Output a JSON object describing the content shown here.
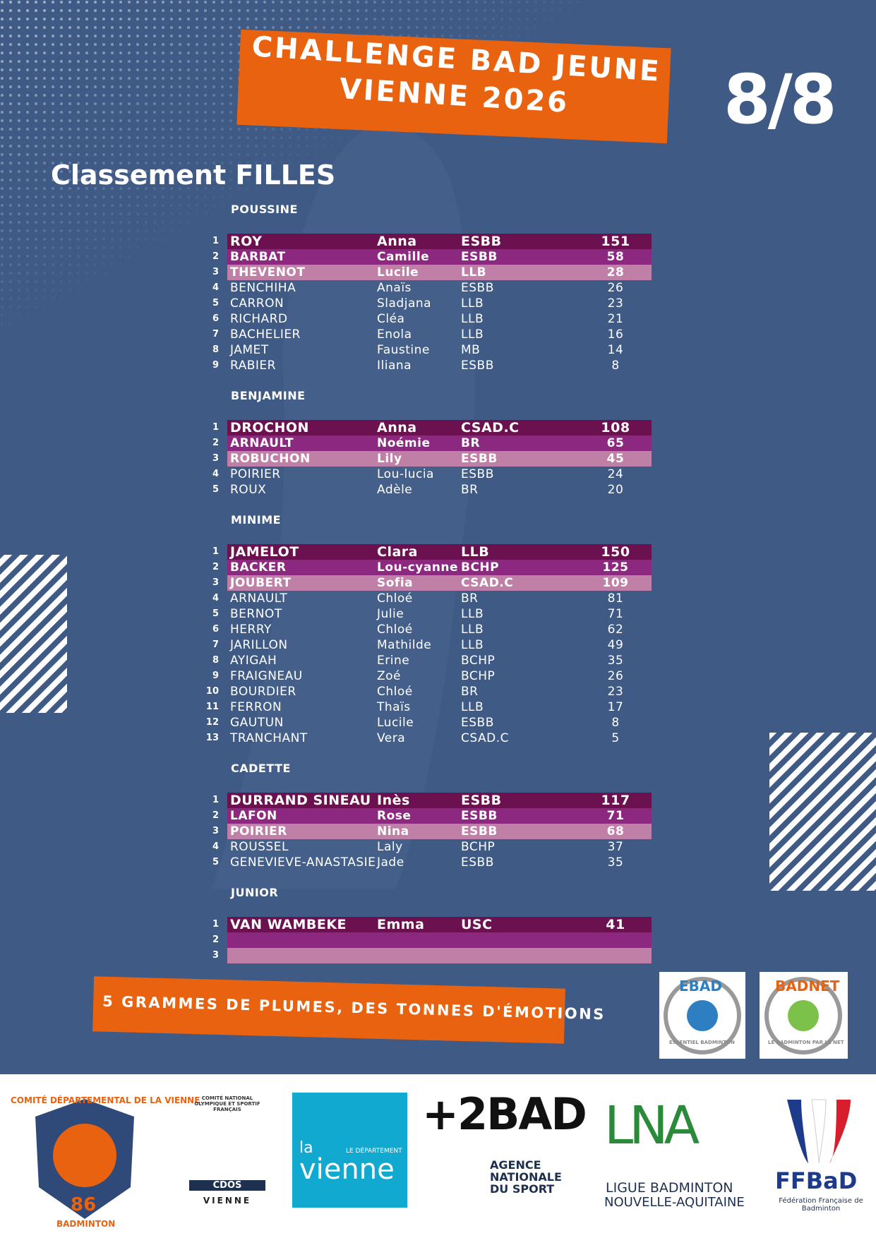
{
  "header": {
    "title_line1": "CHALLENGE BAD JEUNE",
    "title_line2": "VIENNE 2026",
    "round": "8/8"
  },
  "heading": "Classement FILLES",
  "sections": [
    {
      "name": "POUSSINE",
      "rows": [
        [
          1,
          "ROY",
          "Anna",
          "ESBB",
          151
        ],
        [
          2,
          "BARBAT",
          "Camille",
          "ESBB",
          58
        ],
        [
          3,
          "THEVENOT",
          "Lucile",
          "LLB",
          28
        ],
        [
          4,
          "BENCHIHA",
          "Anaïs",
          "ESBB",
          26
        ],
        [
          5,
          "CARRON",
          "Sladjana",
          "LLB",
          23
        ],
        [
          6,
          "RICHARD",
          "Cléa",
          "LLB",
          21
        ],
        [
          7,
          "BACHELIER",
          "Enola",
          "LLB",
          16
        ],
        [
          8,
          "JAMET",
          "Faustine",
          "MB",
          14
        ],
        [
          9,
          "RABIER",
          "Iliana",
          "ESBB",
          8
        ]
      ]
    },
    {
      "name": "BENJAMINE",
      "rows": [
        [
          1,
          "DROCHON",
          "Anna",
          "CSAD.C",
          108
        ],
        [
          2,
          "ARNAULT",
          "Noémie",
          "BR",
          65
        ],
        [
          3,
          "ROBUCHON",
          "Lily",
          "ESBB",
          45
        ],
        [
          4,
          "POIRIER",
          "Lou-lucia",
          "ESBB",
          24
        ],
        [
          5,
          "ROUX",
          "Adèle",
          "BR",
          20
        ]
      ]
    },
    {
      "name": "MINIME",
      "rows": [
        [
          1,
          "JAMELOT",
          "Clara",
          "LLB",
          150
        ],
        [
          2,
          "BACKER",
          "Lou-cyanne",
          "BCHP",
          125
        ],
        [
          3,
          "JOUBERT",
          "Sofia",
          "CSAD.C",
          109
        ],
        [
          4,
          "ARNAULT",
          "Chloé",
          "BR",
          81
        ],
        [
          5,
          "BERNOT",
          "Julie",
          "LLB",
          71
        ],
        [
          6,
          "HERRY",
          "Chloé",
          "LLB",
          62
        ],
        [
          7,
          "JARILLON",
          "Mathilde",
          "LLB",
          49
        ],
        [
          8,
          "AYIGAH",
          "Erine",
          "BCHP",
          35
        ],
        [
          9,
          "FRAIGNEAU",
          "Zoé",
          "BCHP",
          26
        ],
        [
          10,
          "BOURDIER",
          "Chloé",
          "BR",
          23
        ],
        [
          11,
          "FERRON",
          "Thaïs",
          "LLB",
          17
        ],
        [
          12,
          "GAUTUN",
          "Lucile",
          "ESBB",
          8
        ],
        [
          13,
          "TRANCHANT",
          "Vera",
          "CSAD.C",
          5
        ]
      ]
    },
    {
      "name": "CADETTE",
      "rows": [
        [
          1,
          "DURRAND SINEAU",
          "Inès",
          "ESBB",
          117
        ],
        [
          2,
          "LAFON",
          "Rose",
          "ESBB",
          71
        ],
        [
          3,
          "POIRIER",
          "Nina",
          "ESBB",
          68
        ],
        [
          4,
          "ROUSSEL",
          "Laly",
          "BCHP",
          37
        ],
        [
          5,
          "GENEVIEVE-ANASTASIE",
          "Jade",
          "ESBB",
          35
        ]
      ]
    },
    {
      "name": "JUNIOR",
      "rows": [
        [
          1,
          "VAN WAMBEKE",
          "Emma",
          "USC",
          41
        ],
        [
          2
        ],
        [
          3
        ]
      ]
    }
  ],
  "tagline": "5 GRAMMES DE PLUMES, DES TONNES D'ÉMOTIONS",
  "badges": {
    "ebad": "EBAD",
    "ebad_sub": "ESSENTIEL BADMINTON",
    "badnet": "BADNET",
    "badnet_sub": "LE BADMINTON PAR LE NET"
  },
  "sponsors": {
    "comite": "COMITÉ DÉPARTEMENTAL DE LA VIENNE",
    "comite_num": "86",
    "comite_sub": "BADMINTON",
    "cdos_top": "COMITÉ NATIONAL OLYMPIQUE ET SPORTIF FRANÇAIS",
    "cdos": "CDOS",
    "cdos_sub": "VIENNE",
    "dep_la": "la",
    "dep_small": "LE DÉPARTEMENT",
    "dep": "vienne",
    "plus2bad": "+2BAD",
    "ans": "AGENCE NATIONALE DU SPORT",
    "lna": "LNA",
    "lna_sub1": "LIGUE BADMINTON",
    "lna_sub2": "NOUVELLE-AQUITAINE",
    "ffbad": "FFBaD",
    "ffbad_sub": "Fédération Française de Badminton"
  }
}
